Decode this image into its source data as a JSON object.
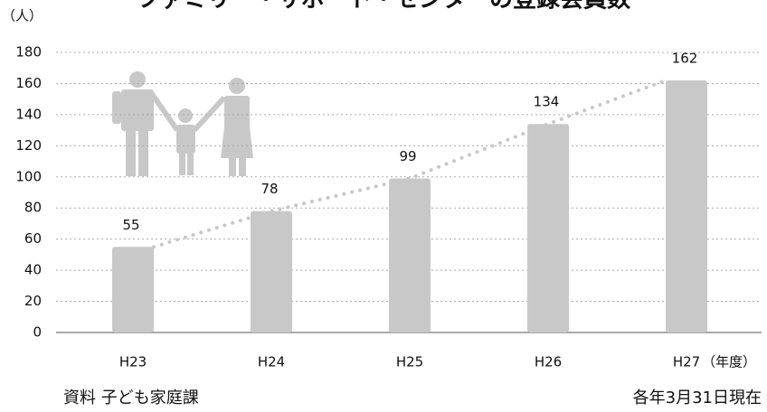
{
  "chart_data": {
    "type": "bar",
    "title": "ファミリー・サポート・センターの登録会員数",
    "y_unit": "（人）",
    "x_unit": "（年度）",
    "categories": [
      "H23",
      "H24",
      "H25",
      "H26",
      "H27"
    ],
    "values": [
      55,
      78,
      99,
      134,
      162
    ],
    "color": "#c8c8c8",
    "ylim": [
      0,
      180
    ],
    "yticks": [
      0,
      20,
      40,
      60,
      80,
      100,
      120,
      140,
      160,
      180
    ],
    "grid": true,
    "source": "資料 子ども家庭課",
    "note": "各年3月31日現在"
  }
}
